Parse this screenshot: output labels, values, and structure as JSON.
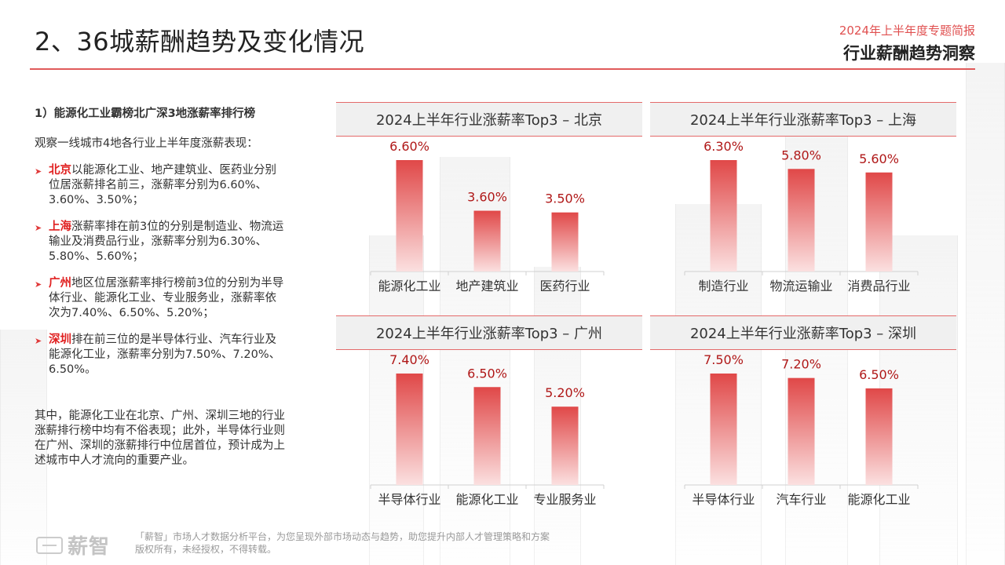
{
  "header": {
    "title": "2、36城薪酬趋势及变化情况",
    "report_subtitle": "2024年上半年度专题简报",
    "report_title": "行业薪酬趋势洞察"
  },
  "left": {
    "heading": "1）能源化工业霸榜北广深3地涨薪率排行榜",
    "intro": "观察一线城市4地各行业上半年度涨薪表现：",
    "bullets": [
      {
        "city": "北京",
        "text": "以能源化工业、地产建筑业、医药业分别位居涨薪排名前三，涨薪率分别为6.60%、3.60%、3.50%；"
      },
      {
        "city": "上海",
        "text": "涨薪率排在前3位的分别是制造业、物流运输业及消费品行业，涨薪率分别为6.30%、5.80%、5.60%；"
      },
      {
        "city": "广州",
        "text": "地区位居涨薪率排行榜前3位的分别为半导体行业、能源化工业、专业服务业，涨薪率依次为7.40%、6.50%、5.20%；"
      },
      {
        "city": "深圳",
        "text": "排在前三位的是半导体行业、汽车行业及能源化工业，涨薪率分别为7.50%、7.20%、6.50%。"
      }
    ],
    "summary": "其中，能源化工业在北京、广州、深圳三地的行业涨薪排行榜中均有不俗表现；此外，半导体行业则在广州、深圳的涨薪排行中位居首位，预计成为上述城市中人才流向的重要产业。"
  },
  "chart_data": [
    {
      "type": "bar",
      "title": "2024上半年行业涨薪率Top3 – 北京",
      "categories": [
        "能源化工业",
        "地产建筑业",
        "医药行业"
      ],
      "values": [
        6.6,
        3.6,
        3.5
      ],
      "labels": [
        "6.60%",
        "3.60%",
        "3.50%"
      ]
    },
    {
      "type": "bar",
      "title": "2024上半年行业涨薪率Top3 – 上海",
      "categories": [
        "制造行业",
        "物流运输业",
        "消费品行业"
      ],
      "values": [
        6.3,
        5.8,
        5.6
      ],
      "labels": [
        "6.30%",
        "5.80%",
        "5.60%"
      ]
    },
    {
      "type": "bar",
      "title": "2024上半年行业涨薪率Top3 – 广州",
      "categories": [
        "半导体行业",
        "能源化工业",
        "专业服务业"
      ],
      "values": [
        7.4,
        6.5,
        5.2
      ],
      "labels": [
        "7.40%",
        "6.50%",
        "5.20%"
      ]
    },
    {
      "type": "bar",
      "title": "2024上半年行业涨薪率Top3 – 深圳",
      "categories": [
        "半导体行业",
        "汽车行业",
        "能源化工业"
      ],
      "values": [
        7.5,
        7.2,
        6.5
      ],
      "labels": [
        "7.50%",
        "7.20%",
        "6.50%"
      ]
    }
  ],
  "colors": {
    "accent": "#e05050",
    "bar_top": "#e04848",
    "bar_bottom": "#fbe0e0",
    "label": "#b01818"
  },
  "footer": {
    "logo_text": "薪智",
    "line1": "「薪智」市场人才数据分析平台，为您呈现外部市场动态与趋势，助您提升内部人才管理策略和方案",
    "line2": "版权所有，未经授权，不得转载。"
  }
}
